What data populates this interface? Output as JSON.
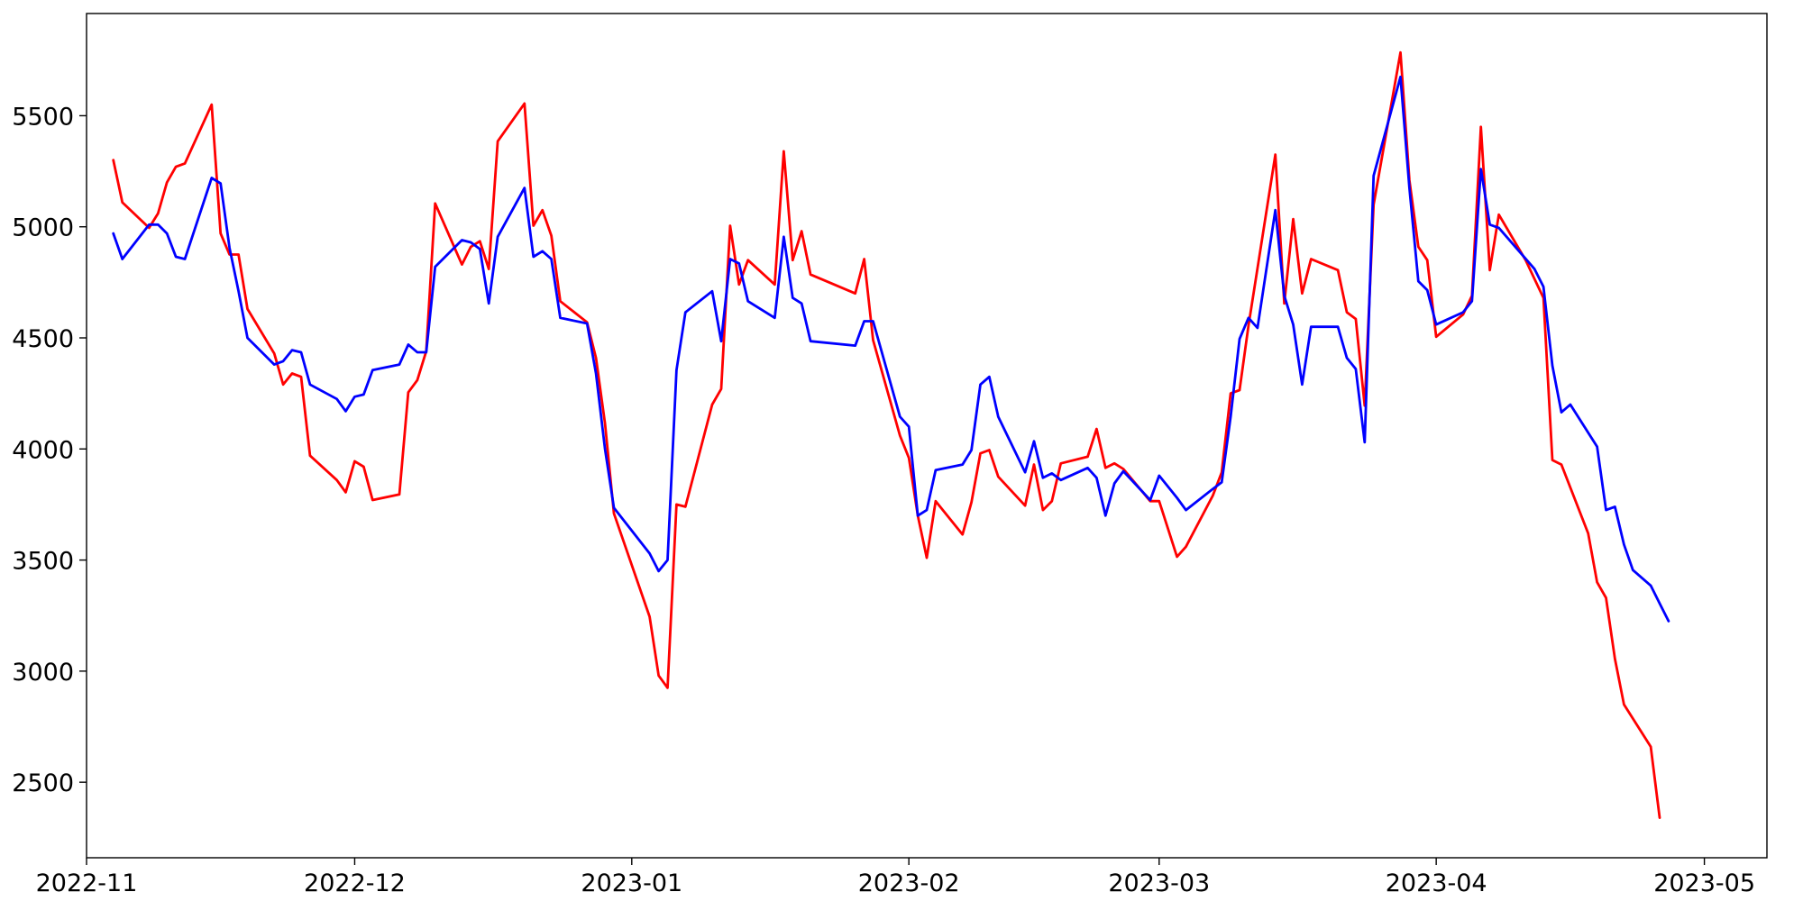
{
  "chart_data": {
    "type": "line",
    "title": "",
    "xlabel": "",
    "ylabel": "",
    "grid": false,
    "legend": "none",
    "xlim": [
      "2022-11-01",
      "2023-05-08"
    ],
    "ylim": [
      2160,
      5960
    ],
    "x_ticks": [
      "2022-11",
      "2022-12",
      "2023-01",
      "2023-02",
      "2023-03",
      "2023-04",
      "2023-05"
    ],
    "y_ticks": [
      2500,
      3000,
      3500,
      4000,
      4500,
      5000,
      5500
    ],
    "series": [
      {
        "color": "#ff0000",
        "points": [
          [
            "2022-11-04",
            5300
          ],
          [
            "2022-11-05",
            5110
          ],
          [
            "2022-11-08",
            4995
          ],
          [
            "2022-11-09",
            5060
          ],
          [
            "2022-11-10",
            5200
          ],
          [
            "2022-11-11",
            5270
          ],
          [
            "2022-11-12",
            5285
          ],
          [
            "2022-11-15",
            5550
          ],
          [
            "2022-11-16",
            4970
          ],
          [
            "2022-11-17",
            4875
          ],
          [
            "2022-11-18",
            4875
          ],
          [
            "2022-11-19",
            4630
          ],
          [
            "2022-11-22",
            4430
          ],
          [
            "2022-11-23",
            4290
          ],
          [
            "2022-11-24",
            4340
          ],
          [
            "2022-11-25",
            4325
          ],
          [
            "2022-11-26",
            3970
          ],
          [
            "2022-11-29",
            3860
          ],
          [
            "2022-11-30",
            3805
          ],
          [
            "2022-12-01",
            3945
          ],
          [
            "2022-12-02",
            3920
          ],
          [
            "2022-12-03",
            3770
          ],
          [
            "2022-12-06",
            3795
          ],
          [
            "2022-12-07",
            4255
          ],
          [
            "2022-12-08",
            4310
          ],
          [
            "2022-12-09",
            4440
          ],
          [
            "2022-12-10",
            5105
          ],
          [
            "2022-12-13",
            4830
          ],
          [
            "2022-12-14",
            4910
          ],
          [
            "2022-12-15",
            4935
          ],
          [
            "2022-12-16",
            4810
          ],
          [
            "2022-12-17",
            5385
          ],
          [
            "2022-12-20",
            5555
          ],
          [
            "2022-12-21",
            5005
          ],
          [
            "2022-12-22",
            5075
          ],
          [
            "2022-12-23",
            4960
          ],
          [
            "2022-12-24",
            4665
          ],
          [
            "2022-12-27",
            4570
          ],
          [
            "2022-12-28",
            4410
          ],
          [
            "2022-12-29",
            4115
          ],
          [
            "2022-12-30",
            3710
          ],
          [
            "2023-01-03",
            3245
          ],
          [
            "2023-01-04",
            2980
          ],
          [
            "2023-01-05",
            2925
          ],
          [
            "2023-01-06",
            3750
          ],
          [
            "2023-01-07",
            3740
          ],
          [
            "2023-01-10",
            4200
          ],
          [
            "2023-01-11",
            4270
          ],
          [
            "2023-01-12",
            5005
          ],
          [
            "2023-01-13",
            4740
          ],
          [
            "2023-01-14",
            4850
          ],
          [
            "2023-01-17",
            4740
          ],
          [
            "2023-01-18",
            5340
          ],
          [
            "2023-01-19",
            4850
          ],
          [
            "2023-01-20",
            4980
          ],
          [
            "2023-01-21",
            4785
          ],
          [
            "2023-01-26",
            4700
          ],
          [
            "2023-01-27",
            4855
          ],
          [
            "2023-01-28",
            4490
          ],
          [
            "2023-01-31",
            4060
          ],
          [
            "2023-02-01",
            3960
          ],
          [
            "2023-02-02",
            3700
          ],
          [
            "2023-02-03",
            3510
          ],
          [
            "2023-02-04",
            3765
          ],
          [
            "2023-02-07",
            3615
          ],
          [
            "2023-02-08",
            3760
          ],
          [
            "2023-02-09",
            3980
          ],
          [
            "2023-02-10",
            3995
          ],
          [
            "2023-02-11",
            3875
          ],
          [
            "2023-02-14",
            3745
          ],
          [
            "2023-02-15",
            3930
          ],
          [
            "2023-02-16",
            3725
          ],
          [
            "2023-02-17",
            3765
          ],
          [
            "2023-02-18",
            3935
          ],
          [
            "2023-02-21",
            3965
          ],
          [
            "2023-02-22",
            4090
          ],
          [
            "2023-02-23",
            3915
          ],
          [
            "2023-02-24",
            3935
          ],
          [
            "2023-02-25",
            3910
          ],
          [
            "2023-02-28",
            3765
          ],
          [
            "2023-03-01",
            3765
          ],
          [
            "2023-03-03",
            3515
          ],
          [
            "2023-03-04",
            3560
          ],
          [
            "2023-03-07",
            3790
          ],
          [
            "2023-03-08",
            3895
          ],
          [
            "2023-03-09",
            4250
          ],
          [
            "2023-03-10",
            4265
          ],
          [
            "2023-03-11",
            4555
          ],
          [
            "2023-03-14",
            5325
          ],
          [
            "2023-03-15",
            4655
          ],
          [
            "2023-03-16",
            5035
          ],
          [
            "2023-03-17",
            4700
          ],
          [
            "2023-03-18",
            4855
          ],
          [
            "2023-03-21",
            4805
          ],
          [
            "2023-03-22",
            4615
          ],
          [
            "2023-03-23",
            4585
          ],
          [
            "2023-03-24",
            4195
          ],
          [
            "2023-03-25",
            5100
          ],
          [
            "2023-03-28",
            5785
          ],
          [
            "2023-03-29",
            5210
          ],
          [
            "2023-03-30",
            4910
          ],
          [
            "2023-03-31",
            4850
          ],
          [
            "2023-04-01",
            4505
          ],
          [
            "2023-04-04",
            4605
          ],
          [
            "2023-04-05",
            4690
          ],
          [
            "2023-04-06",
            5450
          ],
          [
            "2023-04-07",
            4805
          ],
          [
            "2023-04-08",
            5055
          ],
          [
            "2023-04-11",
            4850
          ],
          [
            "2023-04-12",
            4765
          ],
          [
            "2023-04-13",
            4680
          ],
          [
            "2023-04-14",
            3950
          ],
          [
            "2023-04-15",
            3930
          ],
          [
            "2023-04-18",
            3620
          ],
          [
            "2023-04-19",
            3400
          ],
          [
            "2023-04-20",
            3330
          ],
          [
            "2023-04-21",
            3055
          ],
          [
            "2023-04-22",
            2850
          ],
          [
            "2023-04-25",
            2660
          ],
          [
            "2023-04-26",
            2340
          ]
        ]
      },
      {
        "color": "#0000ff",
        "points": [
          [
            "2022-11-04",
            4970
          ],
          [
            "2022-11-05",
            4855
          ],
          [
            "2022-11-08",
            5010
          ],
          [
            "2022-11-09",
            5010
          ],
          [
            "2022-11-10",
            4970
          ],
          [
            "2022-11-11",
            4865
          ],
          [
            "2022-11-12",
            4855
          ],
          [
            "2022-11-15",
            5220
          ],
          [
            "2022-11-16",
            5195
          ],
          [
            "2022-11-17",
            4905
          ],
          [
            "2022-11-18",
            4710
          ],
          [
            "2022-11-19",
            4500
          ],
          [
            "2022-11-22",
            4380
          ],
          [
            "2022-11-23",
            4395
          ],
          [
            "2022-11-24",
            4445
          ],
          [
            "2022-11-25",
            4435
          ],
          [
            "2022-11-26",
            4290
          ],
          [
            "2022-11-29",
            4225
          ],
          [
            "2022-11-30",
            4170
          ],
          [
            "2022-12-01",
            4235
          ],
          [
            "2022-12-02",
            4245
          ],
          [
            "2022-12-03",
            4355
          ],
          [
            "2022-12-06",
            4380
          ],
          [
            "2022-12-07",
            4470
          ],
          [
            "2022-12-08",
            4435
          ],
          [
            "2022-12-09",
            4435
          ],
          [
            "2022-12-10",
            4820
          ],
          [
            "2022-12-13",
            4940
          ],
          [
            "2022-12-14",
            4930
          ],
          [
            "2022-12-15",
            4900
          ],
          [
            "2022-12-16",
            4655
          ],
          [
            "2022-12-17",
            4955
          ],
          [
            "2022-12-20",
            5175
          ],
          [
            "2022-12-21",
            4865
          ],
          [
            "2022-12-22",
            4890
          ],
          [
            "2022-12-23",
            4855
          ],
          [
            "2022-12-24",
            4590
          ],
          [
            "2022-12-27",
            4565
          ],
          [
            "2022-12-28",
            4340
          ],
          [
            "2022-12-29",
            4000
          ],
          [
            "2022-12-30",
            3735
          ],
          [
            "2023-01-03",
            3530
          ],
          [
            "2023-01-04",
            3450
          ],
          [
            "2023-01-05",
            3500
          ],
          [
            "2023-01-06",
            4355
          ],
          [
            "2023-01-07",
            4615
          ],
          [
            "2023-01-10",
            4710
          ],
          [
            "2023-01-11",
            4485
          ],
          [
            "2023-01-12",
            4855
          ],
          [
            "2023-01-13",
            4835
          ],
          [
            "2023-01-14",
            4665
          ],
          [
            "2023-01-17",
            4590
          ],
          [
            "2023-01-18",
            4955
          ],
          [
            "2023-01-19",
            4680
          ],
          [
            "2023-01-20",
            4655
          ],
          [
            "2023-01-21",
            4485
          ],
          [
            "2023-01-26",
            4465
          ],
          [
            "2023-01-27",
            4575
          ],
          [
            "2023-01-28",
            4575
          ],
          [
            "2023-01-31",
            4145
          ],
          [
            "2023-02-01",
            4100
          ],
          [
            "2023-02-02",
            3700
          ],
          [
            "2023-02-03",
            3725
          ],
          [
            "2023-02-04",
            3905
          ],
          [
            "2023-02-07",
            3930
          ],
          [
            "2023-02-08",
            3995
          ],
          [
            "2023-02-09",
            4290
          ],
          [
            "2023-02-10",
            4325
          ],
          [
            "2023-02-11",
            4145
          ],
          [
            "2023-02-14",
            3895
          ],
          [
            "2023-02-15",
            4035
          ],
          [
            "2023-02-16",
            3870
          ],
          [
            "2023-02-17",
            3890
          ],
          [
            "2023-02-18",
            3860
          ],
          [
            "2023-02-21",
            3915
          ],
          [
            "2023-02-22",
            3870
          ],
          [
            "2023-02-23",
            3700
          ],
          [
            "2023-02-24",
            3845
          ],
          [
            "2023-02-25",
            3900
          ],
          [
            "2023-02-28",
            3770
          ],
          [
            "2023-03-01",
            3880
          ],
          [
            "2023-03-03",
            3780
          ],
          [
            "2023-03-04",
            3725
          ],
          [
            "2023-03-07",
            3820
          ],
          [
            "2023-03-08",
            3850
          ],
          [
            "2023-03-09",
            4145
          ],
          [
            "2023-03-10",
            4495
          ],
          [
            "2023-03-11",
            4590
          ],
          [
            "2023-03-12",
            4545
          ],
          [
            "2023-03-14",
            5075
          ],
          [
            "2023-03-15",
            4690
          ],
          [
            "2023-03-16",
            4560
          ],
          [
            "2023-03-17",
            4290
          ],
          [
            "2023-03-18",
            4550
          ],
          [
            "2023-03-21",
            4550
          ],
          [
            "2023-03-22",
            4410
          ],
          [
            "2023-03-23",
            4360
          ],
          [
            "2023-03-24",
            4030
          ],
          [
            "2023-03-25",
            5230
          ],
          [
            "2023-03-28",
            5675
          ],
          [
            "2023-03-29",
            5175
          ],
          [
            "2023-03-30",
            4755
          ],
          [
            "2023-03-31",
            4715
          ],
          [
            "2023-04-01",
            4560
          ],
          [
            "2023-04-04",
            4615
          ],
          [
            "2023-04-05",
            4665
          ],
          [
            "2023-04-06",
            5260
          ],
          [
            "2023-04-07",
            5010
          ],
          [
            "2023-04-08",
            4995
          ],
          [
            "2023-04-12",
            4810
          ],
          [
            "2023-04-13",
            4730
          ],
          [
            "2023-04-14",
            4375
          ],
          [
            "2023-04-15",
            4165
          ],
          [
            "2023-04-16",
            4200
          ],
          [
            "2023-04-19",
            4010
          ],
          [
            "2023-04-20",
            3725
          ],
          [
            "2023-04-21",
            3740
          ],
          [
            "2023-04-22",
            3570
          ],
          [
            "2023-04-23",
            3455
          ],
          [
            "2023-04-25",
            3385
          ],
          [
            "2023-04-26",
            3305
          ],
          [
            "2023-04-27",
            3225
          ]
        ]
      }
    ]
  }
}
